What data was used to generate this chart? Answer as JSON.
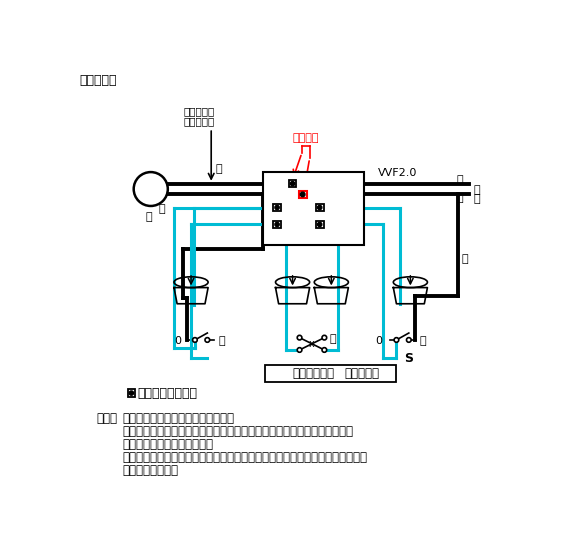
{
  "title": "』複線図『",
  "title2": "【複線図】",
  "background": "#ffffff",
  "black": "#000000",
  "cyan": "#00c8d0",
  "red": "#ff0000",
  "screw_label1": "受金ねじ部",
  "screw_label2": "の端子に白",
  "small_pressure": "小で圧着",
  "vvf_text": "VVF2.0",
  "white_label": "白",
  "black_label": "黒",
  "i_label": "イ",
  "zero_label": "0",
  "s_label": "S",
  "source_kanji": "電源",
  "box_text_normal": "電線の色別は",
  "box_text_bold": "問わない。",
  "legend_text": "：差込形コネクタ",
  "note_label": "（注）",
  "note_line1": "上記の複線図は、正解の一例です。",
  "note_line2": "したがって、３路スイッチ・４路スイッチ相互間の結線方法については、",
  "note_line3": "複数の結線方法があります。",
  "note_line4": "このことにより、３路スイッチの記号「０」を除くその他の記号については、",
  "note_line5": "省略しています。"
}
